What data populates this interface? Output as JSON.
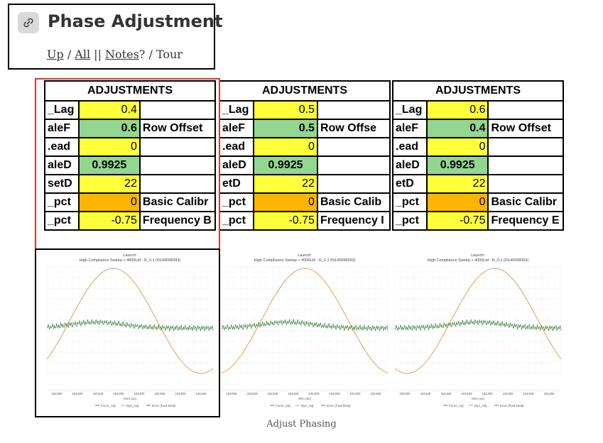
{
  "header": {
    "title": "Phase Adjustment",
    "icon": "link-icon",
    "nav": {
      "up": "Up",
      "sep1": " / ",
      "all": "All",
      "sep2": " || ",
      "notes": "Notes",
      "sep3": "? / ",
      "tour": "Tour"
    }
  },
  "panels": [
    {
      "heading": "ADJUSTMENTS",
      "rows": [
        {
          "label": "_Lag",
          "value": "0.4",
          "note": ""
        },
        {
          "label": "aleF",
          "value": "0.6",
          "note": "Row Offset"
        },
        {
          "label": ".ead",
          "value": "0",
          "note": ""
        },
        {
          "label": "aleD",
          "value": "0.9925",
          "note": ""
        },
        {
          "label": "setD",
          "value": "22",
          "note": ""
        },
        {
          "label": "_pct",
          "value": "0",
          "note": "Basic Calibr"
        },
        {
          "label": "_pct",
          "value": "-0.75",
          "note": "Frequency B"
        }
      ]
    },
    {
      "heading": "ADJUSTMENTS",
      "rows": [
        {
          "label": "_Lag",
          "value": "0.5",
          "note": ""
        },
        {
          "label": "aleF",
          "value": "0.5",
          "note": "Row Offse"
        },
        {
          "label": ".ead",
          "value": "0",
          "note": ""
        },
        {
          "label": "aleD",
          "value": "0.9925",
          "note": ""
        },
        {
          "label": "etD",
          "value": "22",
          "note": ""
        },
        {
          "label": "_pct",
          "value": "0",
          "note": "Basic Calib"
        },
        {
          "label": "_pct",
          "value": "-0.75",
          "note": "Frequency I"
        }
      ]
    },
    {
      "heading": "ADJUSTMENTS",
      "rows": [
        {
          "label": "_Lag",
          "value": "0.6",
          "note": ""
        },
        {
          "label": "aleF",
          "value": "0.4",
          "note": "Row Offset"
        },
        {
          "label": ".ead",
          "value": "0",
          "note": ""
        },
        {
          "label": "aleD",
          "value": "0.9925",
          "note": ""
        },
        {
          "label": "etD",
          "value": "22",
          "note": ""
        },
        {
          "label": "_pct",
          "value": "0",
          "note": "Basic Calibr"
        },
        {
          "label": "_pct",
          "value": "-0.75",
          "note": "Frequency E"
        }
      ]
    }
  ],
  "charts": [
    {
      "title1": "Launch:",
      "title2": "High Compliance Sweep > 4000Lbf - R_0.1 (N149098393)",
      "xlabel": "Item (us)",
      "ticks": [
        "181350",
        "181300",
        "181150",
        "181250",
        "181300",
        "181350",
        "181400",
        "181450"
      ],
      "legend": [
        "Force_Adj",
        "Dyn_Adj",
        "Error (Fwd-Deal)"
      ],
      "phase": 0.4
    },
    {
      "title1": "Launch:",
      "title2": "High Compliance Sweep > 4000Lbf - R_0.1 (N149098393)",
      "xlabel": "Item (us)",
      "ticks": [
        "181050",
        "181100",
        "181150",
        "181250",
        "181300",
        "181350",
        "181400",
        "181450"
      ],
      "legend": [
        "Force_Adj",
        "Dyn_Adj",
        "Error (Fwd-Deal)"
      ],
      "phase": 0.5
    },
    {
      "title1": "Launch:",
      "title2": "High Compliance Sweep > 4000Lbf - R_0.1 (N149098393)",
      "xlabel": "Item (us)",
      "ticks": [
        "181050",
        "181100",
        "181150",
        "181250",
        "181300",
        "181350",
        "181400",
        "181450"
      ],
      "legend": [
        "Force_Adj",
        "Dyn_Adj",
        "Error (Fwd-Deal)"
      ],
      "phase": 0.6
    }
  ],
  "colors": {
    "yellow": "#ffff3a",
    "green": "#93d690",
    "orange": "#ffb400",
    "red_frame": "#d93a2b",
    "sine": "#e0a063",
    "noise": "#4a8a4a"
  },
  "caption": "Adjust Phasing"
}
